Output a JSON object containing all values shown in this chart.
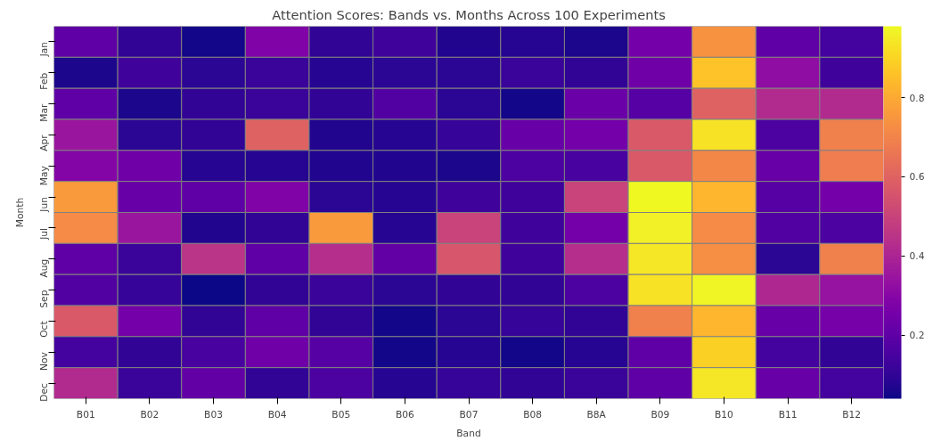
{
  "chart_data": {
    "type": "heatmap",
    "title": "Attention Scores: Bands vs. Months Across 100 Experiments",
    "xlabel": "Band",
    "ylabel": "Month",
    "categories": [
      "B01",
      "B02",
      "B03",
      "B04",
      "B05",
      "B06",
      "B07",
      "B08",
      "B8A",
      "B09",
      "B10",
      "B11",
      "B12"
    ],
    "y_categories": [
      "Jan",
      "Feb",
      "Mar",
      "Apr",
      "May",
      "Jun",
      "Jul",
      "Aug",
      "Sep",
      "Oct",
      "Nov",
      "Dec"
    ],
    "cells": [
      [
        0.2,
        0.1,
        0.05,
        0.28,
        0.1,
        0.13,
        0.07,
        0.08,
        0.06,
        0.25,
        0.74,
        0.2,
        0.14
      ],
      [
        0.06,
        0.13,
        0.09,
        0.12,
        0.08,
        0.09,
        0.09,
        0.12,
        0.1,
        0.24,
        0.86,
        0.32,
        0.13
      ],
      [
        0.2,
        0.06,
        0.1,
        0.12,
        0.1,
        0.17,
        0.09,
        0.05,
        0.23,
        0.18,
        0.6,
        0.42,
        0.42
      ],
      [
        0.35,
        0.09,
        0.1,
        0.6,
        0.07,
        0.08,
        0.11,
        0.22,
        0.25,
        0.57,
        0.93,
        0.16,
        0.69
      ],
      [
        0.29,
        0.24,
        0.08,
        0.08,
        0.07,
        0.07,
        0.06,
        0.16,
        0.15,
        0.57,
        0.71,
        0.22,
        0.68
      ],
      [
        0.76,
        0.22,
        0.2,
        0.28,
        0.09,
        0.08,
        0.13,
        0.13,
        0.5,
        0.98,
        0.83,
        0.18,
        0.25
      ],
      [
        0.72,
        0.35,
        0.07,
        0.1,
        0.76,
        0.08,
        0.5,
        0.13,
        0.25,
        0.96,
        0.72,
        0.17,
        0.16
      ],
      [
        0.2,
        0.12,
        0.45,
        0.2,
        0.43,
        0.21,
        0.56,
        0.13,
        0.43,
        0.94,
        0.73,
        0.09,
        0.69
      ],
      [
        0.17,
        0.11,
        0.04,
        0.1,
        0.12,
        0.09,
        0.1,
        0.1,
        0.16,
        0.93,
        0.97,
        0.41,
        0.34
      ],
      [
        0.57,
        0.25,
        0.1,
        0.2,
        0.1,
        0.05,
        0.09,
        0.11,
        0.1,
        0.69,
        0.83,
        0.22,
        0.26
      ],
      [
        0.14,
        0.1,
        0.15,
        0.24,
        0.18,
        0.05,
        0.08,
        0.05,
        0.08,
        0.2,
        0.89,
        0.14,
        0.1
      ],
      [
        0.42,
        0.12,
        0.21,
        0.1,
        0.16,
        0.08,
        0.11,
        0.1,
        0.12,
        0.2,
        0.94,
        0.22,
        0.14
      ]
    ],
    "clim": [
      0.04,
      0.98
    ],
    "cticks": [
      0.2,
      0.4,
      0.6,
      0.8
    ]
  }
}
